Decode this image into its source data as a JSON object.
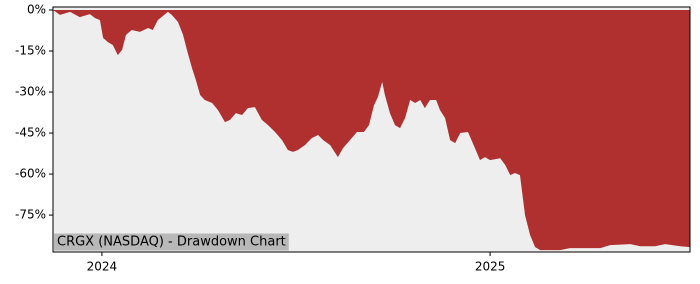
{
  "chart_data": {
    "type": "area",
    "title": "CRGX (NASDAQ) - Drawdown Chart",
    "color": "#b03030",
    "x": [
      2023.874,
      2023.892,
      2023.918,
      2023.943,
      2023.969,
      2023.982,
      2023.995,
      2024.003,
      2024.015,
      2024.028,
      2024.041,
      2024.052,
      2024.062,
      2024.077,
      2024.098,
      2024.119,
      2024.131,
      2024.144,
      2024.157,
      2024.17,
      2024.18,
      2024.196,
      2024.209,
      2024.219,
      2024.232,
      2024.242,
      2024.253,
      2024.265,
      2024.284,
      2024.299,
      2024.317,
      2024.33,
      2024.345,
      2024.361,
      2024.376,
      2024.394,
      2024.412,
      2024.428,
      2024.446,
      2024.464,
      2024.479,
      2024.492,
      2024.505,
      2024.523,
      2024.541,
      2024.557,
      2024.57,
      2024.588,
      2024.608,
      2024.621,
      2024.639,
      2024.657,
      2024.675,
      2024.688,
      2024.701,
      2024.711,
      2024.722,
      2024.729,
      2024.742,
      2024.755,
      2024.768,
      2024.781,
      2024.794,
      2024.807,
      2024.82,
      2024.832,
      2024.845,
      2024.861,
      2024.871,
      2024.884,
      2024.897,
      2024.91,
      2024.923,
      2024.943,
      2024.961,
      2024.974,
      2024.987,
      2025.0,
      2025.026,
      2025.039,
      2025.052,
      2025.064,
      2025.077,
      2025.09,
      2025.103,
      2025.116,
      2025.129,
      2025.18,
      2025.206,
      2025.284,
      2025.309,
      2025.361,
      2025.387,
      2025.425,
      2025.451,
      2025.49,
      2025.515
    ],
    "values": [
      0,
      -1.8,
      -0.7,
      -2.6,
      -1.5,
      -2.9,
      -3.7,
      -10.2,
      -11.7,
      -12.8,
      -16.5,
      -14.6,
      -9.1,
      -7.3,
      -8.0,
      -6.6,
      -7.3,
      -3.7,
      -2.2,
      -0.7,
      -1.8,
      -4.4,
      -9.1,
      -14.6,
      -21.2,
      -25.6,
      -31.1,
      -32.9,
      -34.0,
      -36.6,
      -41.0,
      -40.2,
      -37.7,
      -38.4,
      -35.9,
      -35.5,
      -40.2,
      -42.1,
      -44.6,
      -47.6,
      -51.2,
      -51.9,
      -51.2,
      -49.4,
      -46.8,
      -45.7,
      -47.6,
      -49.4,
      -53.8,
      -50.5,
      -47.6,
      -44.6,
      -44.6,
      -42.1,
      -34.8,
      -31.8,
      -26.3,
      -31.1,
      -37.7,
      -42.1,
      -43.2,
      -39.5,
      -32.9,
      -34.0,
      -32.9,
      -35.9,
      -32.9,
      -32.9,
      -36.6,
      -39.5,
      -47.6,
      -48.7,
      -45.0,
      -44.6,
      -50.5,
      -54.9,
      -53.8,
      -54.9,
      -54.2,
      -56.7,
      -60.4,
      -59.6,
      -60.4,
      -75.0,
      -82.3,
      -86.7,
      -87.8,
      -87.8,
      -87.1,
      -87.1,
      -86.0,
      -85.6,
      -86.4,
      -86.4,
      -85.6,
      -86.4,
      -86.7
    ],
    "xlim": [
      2023.874,
      2025.515
    ],
    "xticks": [
      2024,
      2025
    ],
    "ylim": [
      -88.5,
      1.1
    ],
    "yticks": [
      {
        "value": 0,
        "label": "0%"
      },
      {
        "value": -15,
        "label": "-15%"
      },
      {
        "value": -30,
        "label": "-30%"
      },
      {
        "value": -45,
        "label": "-45%"
      },
      {
        "value": -60,
        "label": "-60%"
      },
      {
        "value": -75,
        "label": "-75%"
      }
    ]
  }
}
